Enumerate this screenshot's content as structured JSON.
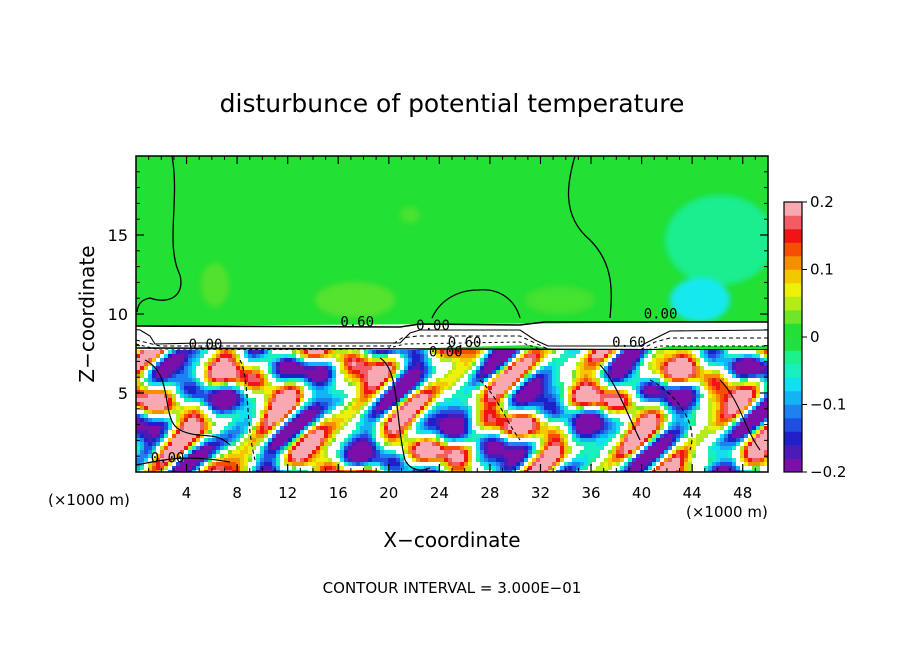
{
  "chart_data": {
    "type": "heatmap",
    "title": "disturbunce of potential temperature",
    "xlabel": "X−coordinate",
    "ylabel": "Z−coordinate",
    "x_unit_left": "(×1000 m)",
    "x_unit_right": "(×1000 m)",
    "xlim": [
      0,
      50
    ],
    "ylim": [
      0,
      20
    ],
    "xticks": [
      4,
      8,
      12,
      16,
      20,
      24,
      28,
      32,
      36,
      40,
      44,
      48
    ],
    "xticklabels": [
      "4",
      "8",
      "12",
      "16",
      "20",
      "24",
      "28",
      "32",
      "36",
      "40",
      "44",
      "48"
    ],
    "yticks": [
      5,
      10,
      15
    ],
    "yticklabels": [
      "5",
      "10",
      "15"
    ],
    "colorbar": {
      "range": [
        -0.2,
        0.2
      ],
      "ticks": [
        0.2,
        0.1,
        0,
        -0.1,
        -0.2
      ],
      "ticklabels": [
        "0.2",
        "0.1",
        "0",
        "−0.1",
        "−0.2"
      ],
      "colors": [
        "#7b0fa8",
        "#4b1bb8",
        "#2020c8",
        "#1f4ee0",
        "#1f80f0",
        "#12b4f4",
        "#12e0f0",
        "#18f0c0",
        "#1ef08c",
        "#22e040",
        "#22e034",
        "#70e628",
        "#b4ec1a",
        "#eef00a",
        "#f4c800",
        "#f49000",
        "#f45000",
        "#f01414",
        "#f25c64",
        "#f7a8b0"
      ]
    },
    "contour_labels": [
      {
        "text": "0.60",
        "x": 17.5,
        "y": 9.2
      },
      {
        "text": "0.00",
        "x": 23.5,
        "y": 9.0
      },
      {
        "text": "0.60",
        "x": 26.0,
        "y": 7.9
      },
      {
        "text": "0.00",
        "x": 24.5,
        "y": 7.3
      },
      {
        "text": "0.00",
        "x": 41.5,
        "y": 9.7
      },
      {
        "text": "0.60",
        "x": 39.0,
        "y": 7.9
      },
      {
        "text": "0.00",
        "x": 5.5,
        "y": 7.8
      },
      {
        "text": "0.00",
        "x": 2.5,
        "y": 0.6
      }
    ],
    "footer": "CONTOUR INTERVAL = 3.000E−01"
  }
}
